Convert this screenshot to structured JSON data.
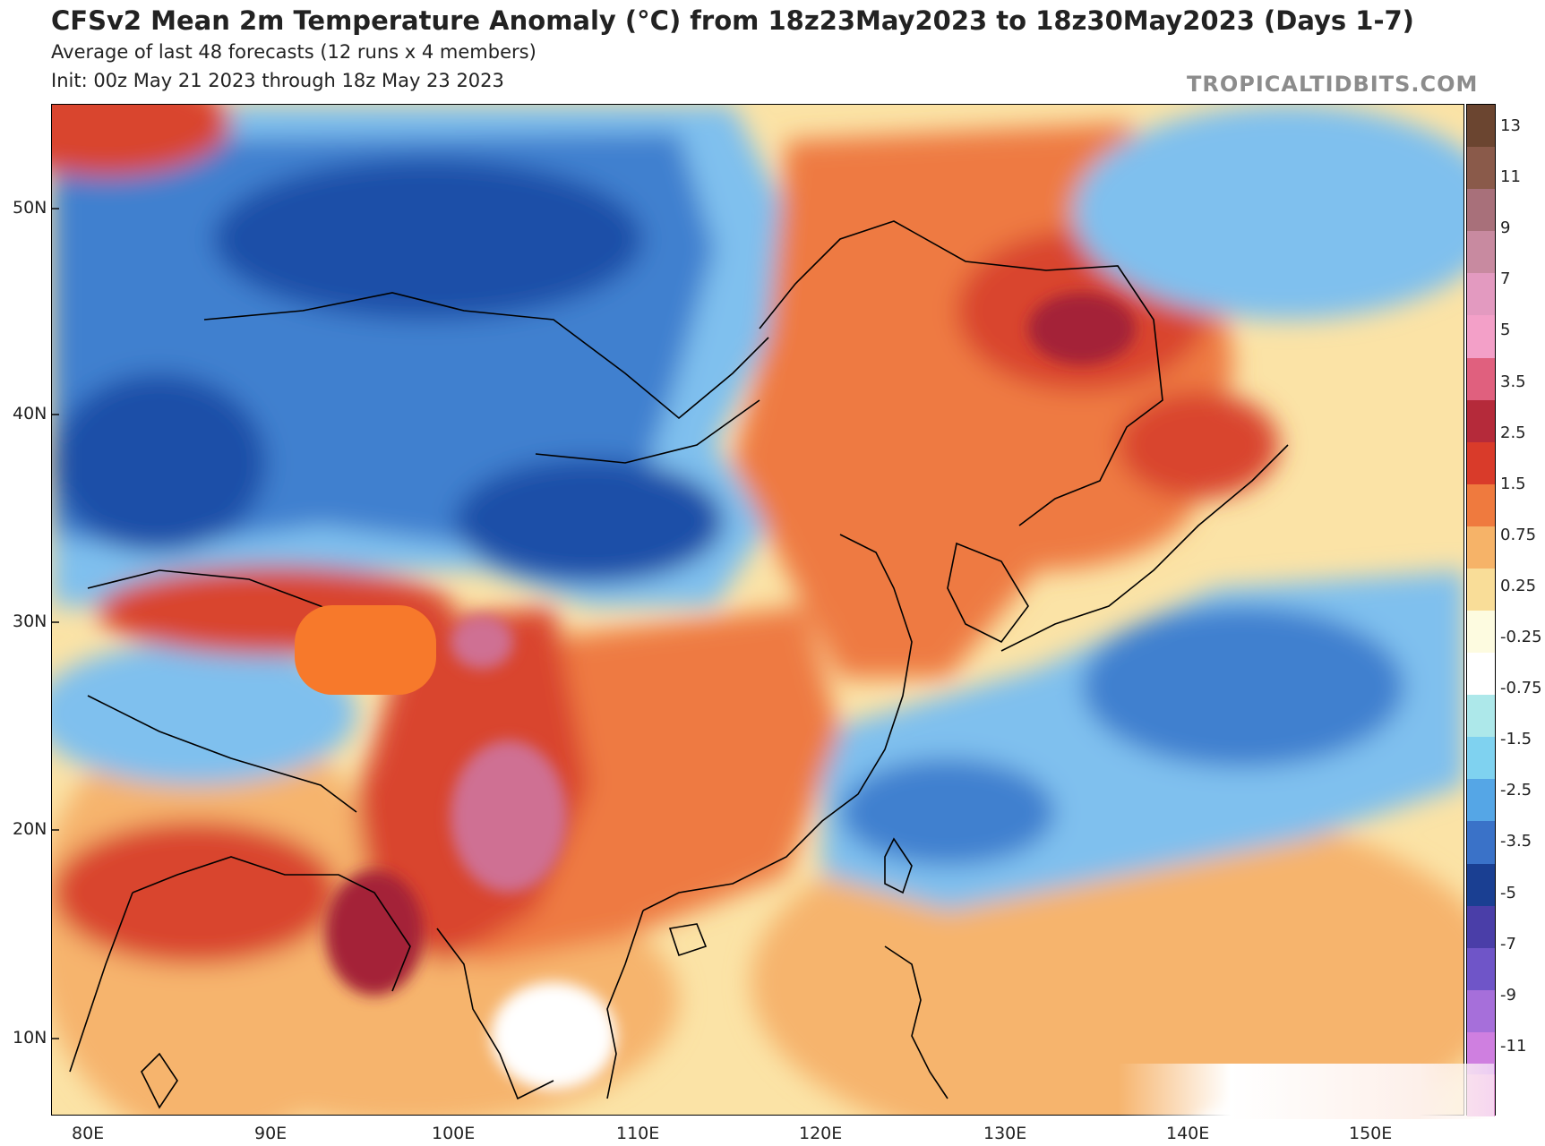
{
  "header": {
    "title": "CFSv2 Mean 2m Temperature Anomaly (°C) from 18z23May2023 to 18z30May2023 (Days 1-7)",
    "subtitle1": "Average of last 48 forecasts (12 runs x 4 members)",
    "subtitle2": "Init: 00z May 21 2023 through 18z May 23 2023",
    "brand": "TROPICALTIDBITS.COM"
  },
  "axes": {
    "lat_labels": [
      "50N",
      "40N",
      "30N",
      "20N",
      "10N"
    ],
    "lon_labels": [
      "80E",
      "90E",
      "100E",
      "110E",
      "120E",
      "130E",
      "140E",
      "150E"
    ]
  },
  "colorbar": {
    "labels": [
      "13",
      "11",
      "9",
      "7",
      "5",
      "3.5",
      "2.5",
      "1.5",
      "0.75",
      "0.25",
      "-0.25",
      "-0.75",
      "-1.5",
      "-2.5",
      "-3.5",
      "-5",
      "-7",
      "-9",
      "-11"
    ],
    "colors": [
      "#6b4530",
      "#8a5a4a",
      "#a8707a",
      "#c88aa0",
      "#e39ac0",
      "#f3a0c8",
      "#e0607e",
      "#b52a3a",
      "#d93b2a",
      "#ef7a3e",
      "#f6b368",
      "#f9dd98",
      "#fdfbe0",
      "#ffffff",
      "#ade8ea",
      "#7fd2f0",
      "#55a6e6",
      "#3a72c8",
      "#1a3f92",
      "#4a3ea8",
      "#6f55c8",
      "#a66fda",
      "#cf7fe0",
      "#e898d8"
    ]
  },
  "map": {
    "colors": {
      "cold_deep": "#1f4fa8",
      "cold": "#3f80cf",
      "cool": "#7fc0ee",
      "cool_light": "#b6e8f3",
      "neutral": "#ffffff",
      "warm_light": "#fbe3a6",
      "warm": "#f6b46d",
      "hot": "#ee7a43",
      "hotter": "#d9452e",
      "hottest": "#a42339",
      "extreme": "#cf6f93",
      "land_line": "#000000",
      "redacted": "#f7792b"
    }
  }
}
